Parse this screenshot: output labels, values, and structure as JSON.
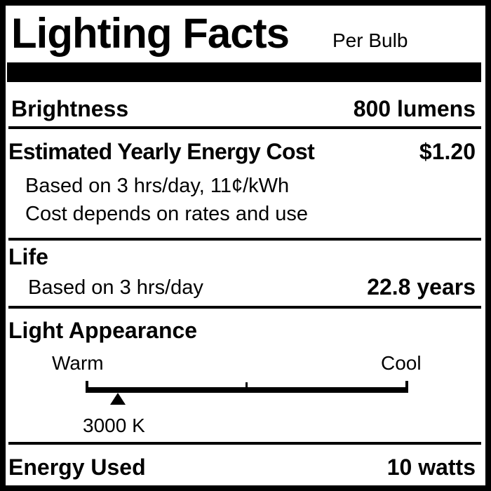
{
  "header": {
    "title": "Lighting Facts",
    "subtitle": "Per Bulb"
  },
  "brightness": {
    "label": "Brightness",
    "value": "800 lumens"
  },
  "energy_cost": {
    "label": "Estimated Yearly Energy Cost",
    "value": "$1.20",
    "note1": "Based on 3 hrs/day, 11¢/kWh",
    "note2": "Cost depends on rates and use"
  },
  "life": {
    "label": "Life",
    "note": "Based on 3 hrs/day",
    "value": "22.8 years"
  },
  "light_appearance": {
    "label": "Light Appearance",
    "warm_label": "Warm",
    "cool_label": "Cool",
    "value": "3000 K",
    "scale_position_fraction": 0.1
  },
  "energy_used": {
    "label": "Energy Used",
    "value": "10 watts"
  },
  "colors": {
    "ink": "#000000",
    "background": "#ffffff"
  }
}
